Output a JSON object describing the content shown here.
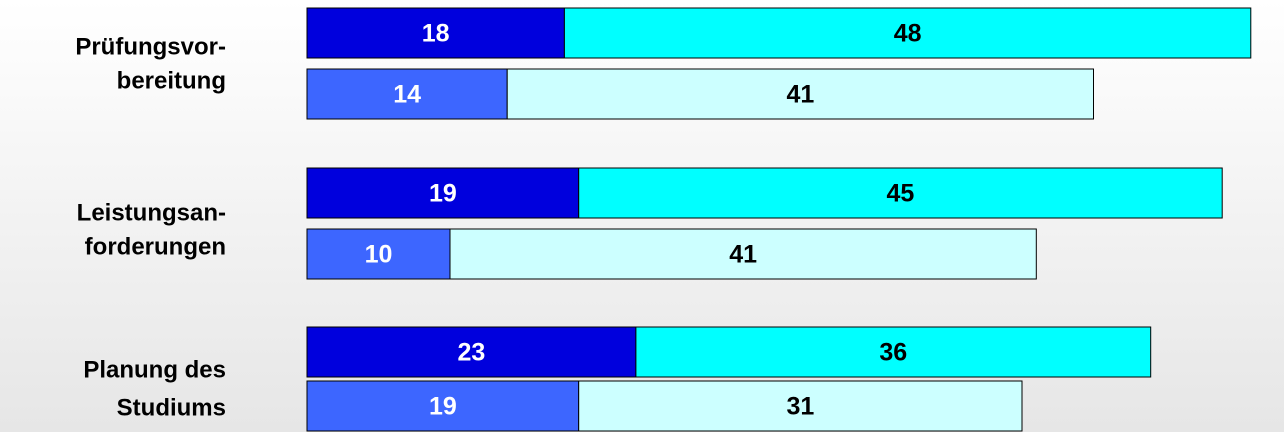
{
  "chart_data": {
    "type": "stacked-bar-horizontal",
    "categories": [
      [
        "Prüfungsvor-",
        "bereitung"
      ],
      [
        "Leistungsan-",
        "forderungen"
      ],
      [
        "Planung des",
        "Studiums"
      ]
    ],
    "series": [
      {
        "color": "#0000dd",
        "values": [
          18,
          19,
          23
        ]
      },
      {
        "color": "#00ffff",
        "values": [
          48,
          45,
          36
        ]
      },
      {
        "color": "#3d66ff",
        "values": [
          14,
          10,
          19
        ]
      },
      {
        "color": "#ccffff",
        "values": [
          41,
          41,
          31
        ]
      }
    ]
  }
}
